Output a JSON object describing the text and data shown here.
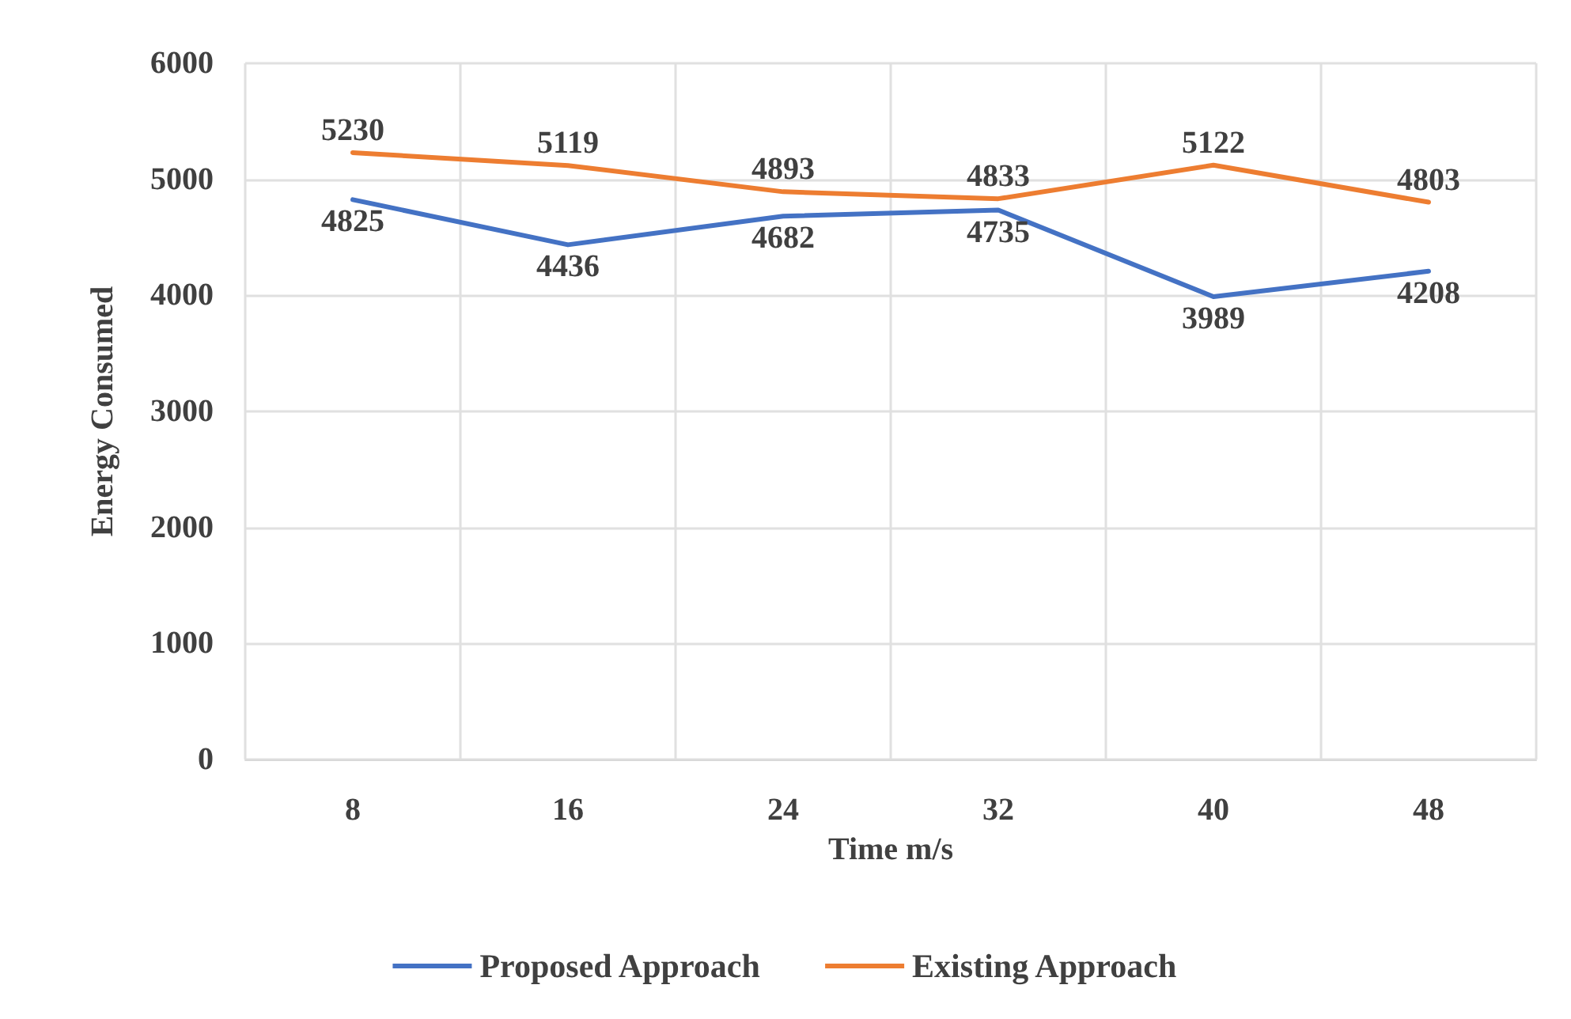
{
  "chart_data": {
    "type": "line",
    "xlabel": "Time m/s",
    "ylabel": "Energy Consumed",
    "categories": [
      "8",
      "16",
      "24",
      "32",
      "40",
      "48"
    ],
    "series": [
      {
        "name": "Proposed Approach",
        "color": "#4472c4",
        "values": [
          4825,
          4436,
          4682,
          4735,
          3989,
          4208
        ]
      },
      {
        "name": "Existing Approach",
        "color": "#ed7d31",
        "values": [
          5230,
          5119,
          4893,
          4833,
          5122,
          4803
        ]
      }
    ],
    "ylim": [
      0,
      6000
    ],
    "yticks": [
      0,
      1000,
      2000,
      3000,
      4000,
      5000,
      6000
    ],
    "grid": true,
    "legend": "bottom",
    "data_labels": true,
    "marker": "none",
    "line_style": "solid"
  }
}
